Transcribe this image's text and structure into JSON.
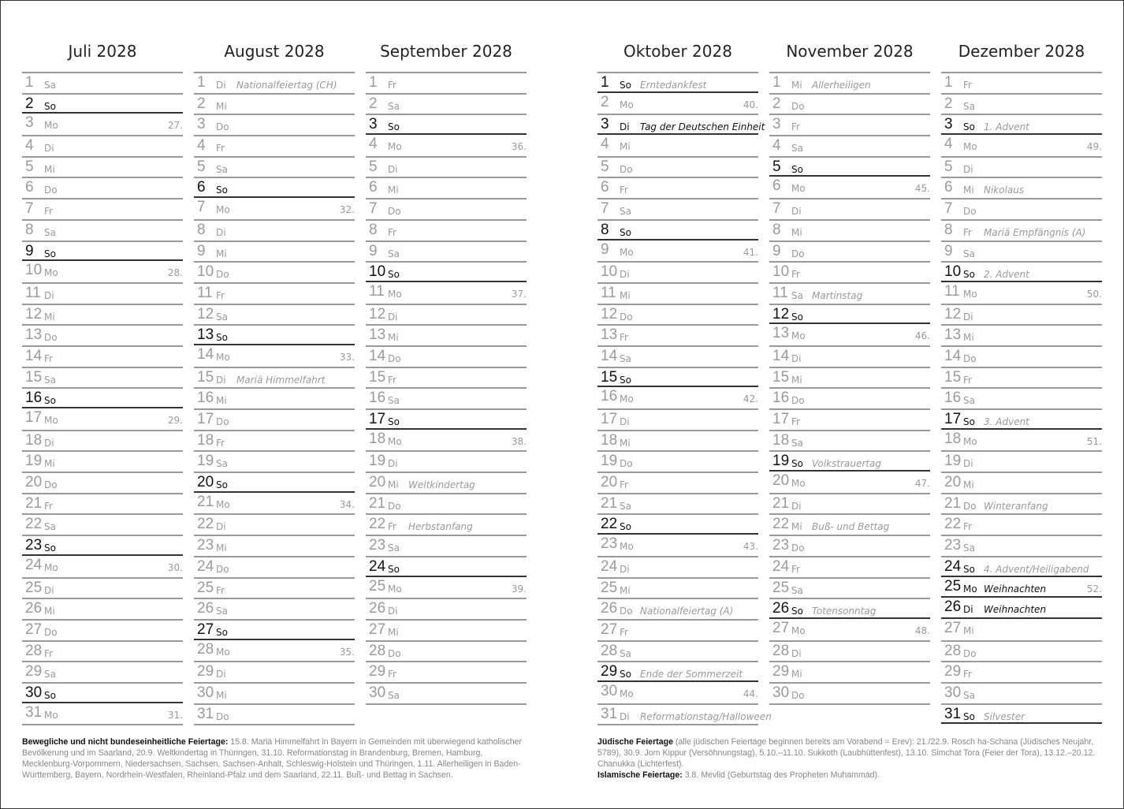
{
  "months": [
    {
      "title": "Juli 2028",
      "days": [
        [
          "1",
          "Sa",
          "",
          ""
        ],
        [
          "2",
          "So",
          "",
          ""
        ],
        [
          "3",
          "Mo",
          "",
          "27."
        ],
        [
          "4",
          "Di",
          "",
          ""
        ],
        [
          "5",
          "Mi",
          "",
          ""
        ],
        [
          "6",
          "Do",
          "",
          ""
        ],
        [
          "7",
          "Fr",
          "",
          ""
        ],
        [
          "8",
          "Sa",
          "",
          ""
        ],
        [
          "9",
          "So",
          "",
          ""
        ],
        [
          "10",
          "Mo",
          "",
          "28."
        ],
        [
          "11",
          "Di",
          "",
          ""
        ],
        [
          "12",
          "Mi",
          "",
          ""
        ],
        [
          "13",
          "Do",
          "",
          ""
        ],
        [
          "14",
          "Fr",
          "",
          ""
        ],
        [
          "15",
          "Sa",
          "",
          ""
        ],
        [
          "16",
          "So",
          "",
          ""
        ],
        [
          "17",
          "Mo",
          "",
          "29."
        ],
        [
          "18",
          "Di",
          "",
          ""
        ],
        [
          "19",
          "Mi",
          "",
          ""
        ],
        [
          "20",
          "Do",
          "",
          ""
        ],
        [
          "21",
          "Fr",
          "",
          ""
        ],
        [
          "22",
          "Sa",
          "",
          ""
        ],
        [
          "23",
          "So",
          "",
          ""
        ],
        [
          "24",
          "Mo",
          "",
          "30."
        ],
        [
          "25",
          "Di",
          "",
          ""
        ],
        [
          "26",
          "Mi",
          "",
          ""
        ],
        [
          "27",
          "Do",
          "",
          ""
        ],
        [
          "28",
          "Fr",
          "",
          ""
        ],
        [
          "29",
          "Sa",
          "",
          ""
        ],
        [
          "30",
          "So",
          "",
          ""
        ],
        [
          "31",
          "Mo",
          "",
          "31."
        ]
      ]
    },
    {
      "title": "August 2028",
      "days": [
        [
          "1",
          "Di",
          "Nationalfeiertag (CH)",
          ""
        ],
        [
          "2",
          "Mi",
          "",
          ""
        ],
        [
          "3",
          "Do",
          "",
          ""
        ],
        [
          "4",
          "Fr",
          "",
          ""
        ],
        [
          "5",
          "Sa",
          "",
          ""
        ],
        [
          "6",
          "So",
          "",
          ""
        ],
        [
          "7",
          "Mo",
          "",
          "32."
        ],
        [
          "8",
          "Di",
          "",
          ""
        ],
        [
          "9",
          "Mi",
          "",
          ""
        ],
        [
          "10",
          "Do",
          "",
          ""
        ],
        [
          "11",
          "Fr",
          "",
          ""
        ],
        [
          "12",
          "Sa",
          "",
          ""
        ],
        [
          "13",
          "So",
          "",
          ""
        ],
        [
          "14",
          "Mo",
          "",
          "33."
        ],
        [
          "15",
          "Di",
          "Mariä Himmelfahrt",
          ""
        ],
        [
          "16",
          "Mi",
          "",
          ""
        ],
        [
          "17",
          "Do",
          "",
          ""
        ],
        [
          "18",
          "Fr",
          "",
          ""
        ],
        [
          "19",
          "Sa",
          "",
          ""
        ],
        [
          "20",
          "So",
          "",
          ""
        ],
        [
          "21",
          "Mo",
          "",
          "34."
        ],
        [
          "22",
          "Di",
          "",
          ""
        ],
        [
          "23",
          "Mi",
          "",
          ""
        ],
        [
          "24",
          "Do",
          "",
          ""
        ],
        [
          "25",
          "Fr",
          "",
          ""
        ],
        [
          "26",
          "Sa",
          "",
          ""
        ],
        [
          "27",
          "So",
          "",
          ""
        ],
        [
          "28",
          "Mo",
          "",
          "35."
        ],
        [
          "29",
          "Di",
          "",
          ""
        ],
        [
          "30",
          "Mi",
          "",
          ""
        ],
        [
          "31",
          "Do",
          "",
          ""
        ]
      ]
    },
    {
      "title": "September 2028",
      "days": [
        [
          "1",
          "Fr",
          "",
          ""
        ],
        [
          "2",
          "Sa",
          "",
          ""
        ],
        [
          "3",
          "So",
          "",
          ""
        ],
        [
          "4",
          "Mo",
          "",
          "36."
        ],
        [
          "5",
          "Di",
          "",
          ""
        ],
        [
          "6",
          "Mi",
          "",
          ""
        ],
        [
          "7",
          "Do",
          "",
          ""
        ],
        [
          "8",
          "Fr",
          "",
          ""
        ],
        [
          "9",
          "Sa",
          "",
          ""
        ],
        [
          "10",
          "So",
          "",
          ""
        ],
        [
          "11",
          "Mo",
          "",
          "37."
        ],
        [
          "12",
          "Di",
          "",
          ""
        ],
        [
          "13",
          "Mi",
          "",
          ""
        ],
        [
          "14",
          "Do",
          "",
          ""
        ],
        [
          "15",
          "Fr",
          "",
          ""
        ],
        [
          "16",
          "Sa",
          "",
          ""
        ],
        [
          "17",
          "So",
          "",
          ""
        ],
        [
          "18",
          "Mo",
          "",
          "38."
        ],
        [
          "19",
          "Di",
          "",
          ""
        ],
        [
          "20",
          "Mi",
          "Weltkindertag",
          ""
        ],
        [
          "21",
          "Do",
          "",
          ""
        ],
        [
          "22",
          "Fr",
          "Herbstanfang",
          ""
        ],
        [
          "23",
          "Sa",
          "",
          ""
        ],
        [
          "24",
          "So",
          "",
          ""
        ],
        [
          "25",
          "Mo",
          "",
          "39."
        ],
        [
          "26",
          "Di",
          "",
          ""
        ],
        [
          "27",
          "Mi",
          "",
          ""
        ],
        [
          "28",
          "Do",
          "",
          ""
        ],
        [
          "29",
          "Fr",
          "",
          ""
        ],
        [
          "30",
          "Sa",
          "",
          ""
        ]
      ]
    },
    {
      "title": "Oktober 2028",
      "days": [
        [
          "1",
          "So",
          "Erntedankfest",
          ""
        ],
        [
          "2",
          "Mo",
          "",
          "40."
        ],
        [
          "3",
          "Di",
          "Tag der Deutschen Einheit",
          "",
          "h"
        ],
        [
          "4",
          "Mi",
          "",
          ""
        ],
        [
          "5",
          "Do",
          "",
          ""
        ],
        [
          "6",
          "Fr",
          "",
          ""
        ],
        [
          "7",
          "Sa",
          "",
          ""
        ],
        [
          "8",
          "So",
          "",
          ""
        ],
        [
          "9",
          "Mo",
          "",
          "41."
        ],
        [
          "10",
          "Di",
          "",
          ""
        ],
        [
          "11",
          "Mi",
          "",
          ""
        ],
        [
          "12",
          "Do",
          "",
          ""
        ],
        [
          "13",
          "Fr",
          "",
          ""
        ],
        [
          "14",
          "Sa",
          "",
          ""
        ],
        [
          "15",
          "So",
          "",
          ""
        ],
        [
          "16",
          "Mo",
          "",
          "42."
        ],
        [
          "17",
          "Di",
          "",
          ""
        ],
        [
          "18",
          "Mi",
          "",
          ""
        ],
        [
          "19",
          "Do",
          "",
          ""
        ],
        [
          "20",
          "Fr",
          "",
          ""
        ],
        [
          "21",
          "Sa",
          "",
          ""
        ],
        [
          "22",
          "So",
          "",
          ""
        ],
        [
          "23",
          "Mo",
          "",
          "43."
        ],
        [
          "24",
          "Di",
          "",
          ""
        ],
        [
          "25",
          "Mi",
          "",
          ""
        ],
        [
          "26",
          "Do",
          "Nationalfeiertag (A)",
          ""
        ],
        [
          "27",
          "Fr",
          "",
          ""
        ],
        [
          "28",
          "Sa",
          "",
          ""
        ],
        [
          "29",
          "So",
          "Ende der Sommerzeit",
          ""
        ],
        [
          "30",
          "Mo",
          "",
          "44."
        ],
        [
          "31",
          "Di",
          "Reformationstag/Halloween",
          ""
        ]
      ]
    },
    {
      "title": "November 2028",
      "days": [
        [
          "1",
          "Mi",
          "Allerheiligen",
          ""
        ],
        [
          "2",
          "Do",
          "",
          ""
        ],
        [
          "3",
          "Fr",
          "",
          ""
        ],
        [
          "4",
          "Sa",
          "",
          ""
        ],
        [
          "5",
          "So",
          "",
          ""
        ],
        [
          "6",
          "Mo",
          "",
          "45."
        ],
        [
          "7",
          "Di",
          "",
          ""
        ],
        [
          "8",
          "Mi",
          "",
          ""
        ],
        [
          "9",
          "Do",
          "",
          ""
        ],
        [
          "10",
          "Fr",
          "",
          ""
        ],
        [
          "11",
          "Sa",
          "Martinstag",
          ""
        ],
        [
          "12",
          "So",
          "",
          ""
        ],
        [
          "13",
          "Mo",
          "",
          "46."
        ],
        [
          "14",
          "Di",
          "",
          ""
        ],
        [
          "15",
          "Mi",
          "",
          ""
        ],
        [
          "16",
          "Do",
          "",
          ""
        ],
        [
          "17",
          "Fr",
          "",
          ""
        ],
        [
          "18",
          "Sa",
          "",
          ""
        ],
        [
          "19",
          "So",
          "Volkstrauertag",
          ""
        ],
        [
          "20",
          "Mo",
          "",
          "47."
        ],
        [
          "21",
          "Di",
          "",
          ""
        ],
        [
          "22",
          "Mi",
          "Buß- und Bettag",
          ""
        ],
        [
          "23",
          "Do",
          "",
          ""
        ],
        [
          "24",
          "Fr",
          "",
          ""
        ],
        [
          "25",
          "Sa",
          "",
          ""
        ],
        [
          "26",
          "So",
          "Totensonntag",
          ""
        ],
        [
          "27",
          "Mo",
          "",
          "48."
        ],
        [
          "28",
          "Di",
          "",
          ""
        ],
        [
          "29",
          "Mi",
          "",
          ""
        ],
        [
          "30",
          "Do",
          "",
          ""
        ]
      ]
    },
    {
      "title": "Dezember 2028",
      "days": [
        [
          "1",
          "Fr",
          "",
          ""
        ],
        [
          "2",
          "Sa",
          "",
          ""
        ],
        [
          "3",
          "So",
          "1. Advent",
          ""
        ],
        [
          "4",
          "Mo",
          "",
          "49."
        ],
        [
          "5",
          "Di",
          "",
          ""
        ],
        [
          "6",
          "Mi",
          "Nikolaus",
          ""
        ],
        [
          "7",
          "Do",
          "",
          ""
        ],
        [
          "8",
          "Fr",
          "Mariä Empfängnis (A)",
          ""
        ],
        [
          "9",
          "Sa",
          "",
          ""
        ],
        [
          "10",
          "So",
          "2. Advent",
          ""
        ],
        [
          "11",
          "Mo",
          "",
          "50."
        ],
        [
          "12",
          "Di",
          "",
          ""
        ],
        [
          "13",
          "Mi",
          "",
          ""
        ],
        [
          "14",
          "Do",
          "",
          ""
        ],
        [
          "15",
          "Fr",
          "",
          ""
        ],
        [
          "16",
          "Sa",
          "",
          ""
        ],
        [
          "17",
          "So",
          "3. Advent",
          ""
        ],
        [
          "18",
          "Mo",
          "",
          "51."
        ],
        [
          "19",
          "Di",
          "",
          ""
        ],
        [
          "20",
          "Mi",
          "",
          ""
        ],
        [
          "21",
          "Do",
          "Winteranfang",
          ""
        ],
        [
          "22",
          "Fr",
          "",
          ""
        ],
        [
          "23",
          "Sa",
          "",
          ""
        ],
        [
          "24",
          "So",
          "4. Advent/Heiligabend",
          ""
        ],
        [
          "25",
          "Mo",
          "Weihnachten",
          "52.",
          "h"
        ],
        [
          "26",
          "Di",
          "Weihnachten",
          "",
          "h"
        ],
        [
          "27",
          "Mi",
          "",
          ""
        ],
        [
          "28",
          "Do",
          "",
          ""
        ],
        [
          "29",
          "Fr",
          "",
          ""
        ],
        [
          "30",
          "Sa",
          "",
          ""
        ],
        [
          "31",
          "So",
          "Silvester",
          ""
        ]
      ]
    }
  ],
  "footnotes": {
    "left_label": "Bewegliche und nicht bundeseinheitliche Feiertage:",
    "left_text": " 15.8. Mariä Himmelfahrt in Bayern in Gemeinden mit überwiegend katholischer Bevölkerung und im Saarland, 20.9. Weltkindertag in Thüringen, 31.10. Reformationstag in Brandenburg, Bremen, Hamburg, Mecklenburg-Vorpommern, Niedersachsen, Sachsen, Sachsen-Anhalt, Schleswig-Holstein und Thüringen, 1.11. Allerheiligen in Baden-Württemberg, Bayern, Nordrhein-Westfalen, Rheinland-Pfalz und dem Saarland, 22.11. Buß- und Bettag in Sachsen.",
    "jewish_label": "Jüdische Feiertage",
    "jewish_text": " (alle jüdischen Feiertage beginnen bereits am Vorabend = Erev): 21./22.9. Rosch ha-Schana (Jüdisches Neujahr, 5789), 30.9. Jom Kippur (Versöhnungstag), 5.10.–11.10. Sukkoth (Laubhüttenfest), 13.10. Simchat Tora (Feier der Tora), 13.12.–20.12. Chanukka (Lichterfest).",
    "islamic_label": "Islamische Feiertage:",
    "islamic_text": " 3.8. Mevlid (Geburtstag des Propheten Muhammad)."
  }
}
